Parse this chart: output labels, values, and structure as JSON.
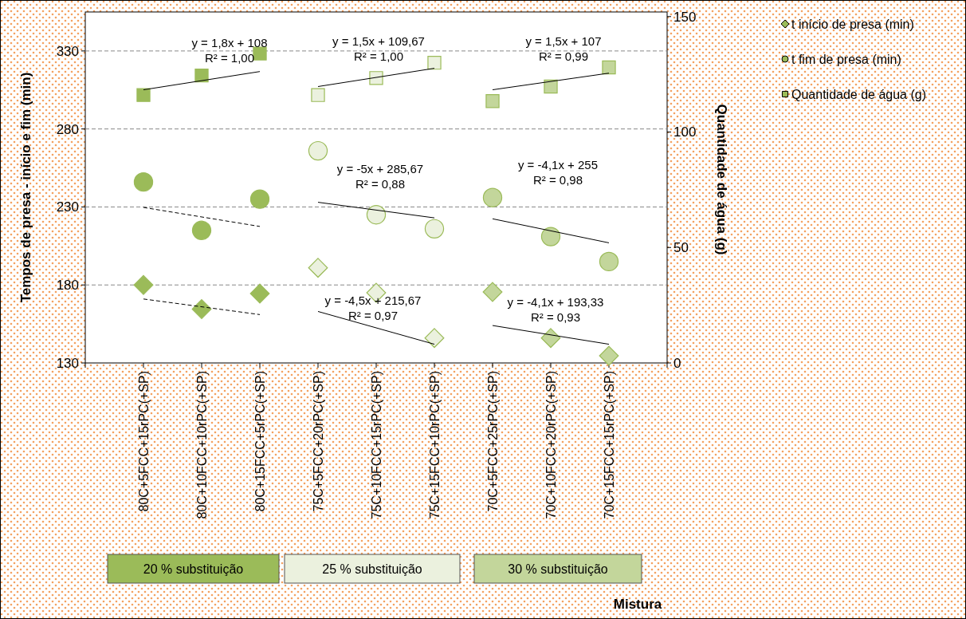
{
  "chart_data": {
    "type": "scatter",
    "ylabel": "Tempos de presa - início e fim (min)",
    "y2label": "Quantidade de água (g)",
    "categories": [
      "80C+5FCC+15rPC(+SP)",
      "80C+10FCC+10rPC(+SP)",
      "80C+15FCC+5rPC(+SP)",
      "75C+5FCC+20rPC(+SP)",
      "75C+10FCC+15rPC(+SP)",
      "75C+15FCC+10rPC(+SP)",
      "70C+5FCC+25rPC(+SP)",
      "70C+10FCC+20rPC(+SP)",
      "70C+15FCC+15rPC(+SP)"
    ],
    "ylim": [
      130,
      355
    ],
    "yticks": [
      130,
      180,
      230,
      280,
      330
    ],
    "y2lim": [
      0,
      152
    ],
    "y2ticks": [
      0,
      50,
      100,
      150
    ],
    "grid": "y",
    "legend": "top right",
    "series": [
      {
        "name": "t início de presa (min)",
        "marker": "diamond",
        "color": "#9bbb59",
        "colors": [
          "#9bbb59",
          "#9bbb59",
          "#9bbb59",
          "#ebf1de",
          "#ebf1de",
          "#ebf1de",
          "#c3d69b",
          "#c3d69b",
          "#c3d69b"
        ],
        "values": [
          180,
          164.5,
          174.5,
          191,
          175,
          146,
          175.5,
          146,
          134.6
        ]
      },
      {
        "name": "t fim de presa (min)",
        "marker": "circle",
        "color": "#9bbb59",
        "colors": [
          "#9bbb59",
          "#9bbb59",
          "#9bbb59",
          "#ebf1de",
          "#ebf1de",
          "#ebf1de",
          "#c3d69b",
          "#c3d69b",
          "#c3d69b"
        ],
        "values": [
          246,
          215,
          235,
          266,
          225,
          216,
          236,
          211,
          195
        ]
      },
      {
        "name": "Quantidade de água (g)",
        "marker": "square",
        "axis": "y2",
        "color": "#9bbb59",
        "colors": [
          "#9bbb59",
          "#9bbb59",
          "#9bbb59",
          "#ebf1de",
          "#ebf1de",
          "#ebf1de",
          "#c3d69b",
          "#c3d69b",
          "#c3d69b"
        ],
        "values": [
          116,
          124.5,
          134,
          116,
          123.4,
          130,
          113.4,
          119.7,
          128
        ]
      },
      {
        "type": "line",
        "line_style": "dashed",
        "color": "#000000",
        "x": [
          "80C+5FCC+15rPC(+SP)",
          "80C+15FCC+5rPC(+SP)"
        ],
        "values": [
          171,
          161
        ]
      },
      {
        "type": "line",
        "line_style": "solid",
        "color": "#000000",
        "x": [
          "75C+5FCC+20rPC(+SP)",
          "75C+15FCC+10rPC(+SP)"
        ],
        "values": [
          163,
          142
        ]
      },
      {
        "type": "line",
        "line_style": "solid",
        "color": "#000000",
        "x": [
          "70C+5FCC+25rPC(+SP)",
          "70C+15FCC+15rPC(+SP)"
        ],
        "values": [
          154,
          142
        ]
      },
      {
        "type": "line",
        "line_style": "dashed",
        "color": "#000000",
        "x": [
          "80C+5FCC+15rPC(+SP)",
          "80C+15FCC+5rPC(+SP)"
        ],
        "values": [
          229.7,
          217.5
        ]
      },
      {
        "type": "line",
        "line_style": "solid",
        "color": "#000000",
        "x": [
          "75C+5FCC+20rPC(+SP)",
          "75C+15FCC+10rPC(+SP)"
        ],
        "values": [
          233,
          223
        ]
      },
      {
        "type": "line",
        "line_style": "solid",
        "color": "#000000",
        "x": [
          "70C+5FCC+25rPC(+SP)",
          "70C+15FCC+15rPC(+SP)"
        ],
        "values": [
          222.4,
          207
        ]
      },
      {
        "type": "line",
        "line_style": "solid",
        "axis": "y2",
        "color": "#000000",
        "x": [
          "80C+5FCC+15rPC(+SP)",
          "80C+15FCC+5rPC(+SP)"
        ],
        "values": [
          118.3,
          126.2
        ]
      },
      {
        "type": "line",
        "line_style": "solid",
        "axis": "y2",
        "color": "#000000",
        "x": [
          "75C+5FCC+20rPC(+SP)",
          "75C+15FCC+10rPC(+SP)"
        ],
        "values": [
          119.7,
          127.6
        ]
      },
      {
        "type": "line",
        "line_style": "solid",
        "axis": "y2",
        "color": "#000000",
        "x": [
          "70C+5FCC+25rPC(+SP)",
          "70C+15FCC+15rPC(+SP)"
        ],
        "values": [
          118.3,
          125.5
        ]
      }
    ],
    "annotations": [
      "y = 1,8x + 108\nR² = 1,00",
      "y = 1,5x + 109,67\nR² = 1,00",
      "y = 1,5x + 107\nR² = 0,99",
      "y = -5x + 285,67\nR² = 0,88",
      "y = -4,1x + 255\nR² = 0,98",
      "y = -4,5x + 215,67\nR² = 0,97",
      "y = -4,1x + 193,33\nR² = 0,93",
      "20 % substituição",
      "25 % substituição",
      "30 % substituição",
      "Mistura"
    ]
  }
}
